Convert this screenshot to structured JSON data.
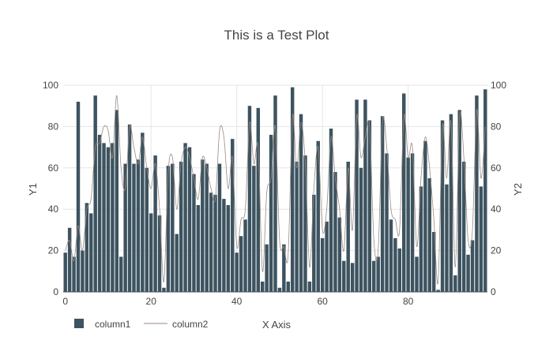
{
  "chart_data": {
    "type": "bar",
    "title": "This is a Test Plot",
    "xlabel": "X Axis",
    "ylabel": "Y1",
    "y2label": "Y2",
    "xlim": [
      0,
      99
    ],
    "ylim": [
      0,
      100
    ],
    "y2lim": [
      0,
      100
    ],
    "x_ticks": [
      0,
      20,
      40,
      60,
      80
    ],
    "y_ticks": [
      0,
      20,
      40,
      60,
      80,
      100
    ],
    "y2_ticks": [
      0,
      20,
      40,
      60,
      80,
      100
    ],
    "grid": true,
    "legend_position": "bottom-left",
    "colors": {
      "bar": "#3d5360",
      "line": "#9a8a80",
      "grid": "#e6e6e6",
      "text": "#444444"
    },
    "series": [
      {
        "name": "column1",
        "kind": "bar",
        "axis": "y1",
        "values": [
          19,
          31,
          17,
          92,
          20,
          43,
          38,
          95,
          76,
          72,
          70,
          72,
          88,
          17,
          62,
          81,
          62,
          64,
          77,
          60,
          38,
          66,
          37,
          2,
          61,
          62,
          28,
          63,
          72,
          70,
          57,
          42,
          64,
          62,
          48,
          47,
          62,
          45,
          42,
          74,
          19,
          27,
          35,
          90,
          61,
          89,
          5,
          23,
          76,
          95,
          2,
          23,
          5,
          99,
          63,
          86,
          66,
          5,
          47,
          73,
          26,
          34,
          79,
          58,
          36,
          15,
          63,
          14,
          93,
          60,
          93,
          83,
          15,
          17,
          85,
          67,
          35,
          26,
          21,
          96,
          65,
          67,
          17,
          51,
          73,
          55,
          29,
          1,
          83,
          52,
          86,
          8,
          88,
          63,
          18,
          25,
          95,
          51,
          98
        ]
      },
      {
        "name": "column2",
        "kind": "line",
        "axis": "y2",
        "values": [
          20,
          25,
          15,
          32,
          20,
          40,
          45,
          70,
          72,
          80,
          78,
          65,
          95,
          60,
          50,
          80,
          70,
          62,
          75,
          60,
          50,
          62,
          40,
          5,
          58,
          65,
          40,
          62,
          70,
          65,
          55,
          45,
          65,
          60,
          50,
          45,
          78,
          75,
          50,
          65,
          22,
          35,
          40,
          82,
          62,
          70,
          10,
          48,
          55,
          80,
          25,
          22,
          18,
          85,
          60,
          82,
          62,
          12,
          50,
          70,
          30,
          40,
          75,
          55,
          40,
          20,
          60,
          30,
          85,
          65,
          75,
          80,
          25,
          20,
          82,
          70,
          40,
          35,
          30,
          85,
          65,
          70,
          22,
          55,
          75,
          60,
          35,
          5,
          80,
          55,
          82,
          12,
          85,
          65,
          25,
          30,
          88,
          55,
          80
        ]
      }
    ],
    "legend": [
      {
        "label": "column1",
        "kind": "bar"
      },
      {
        "label": "column2",
        "kind": "line"
      }
    ]
  }
}
